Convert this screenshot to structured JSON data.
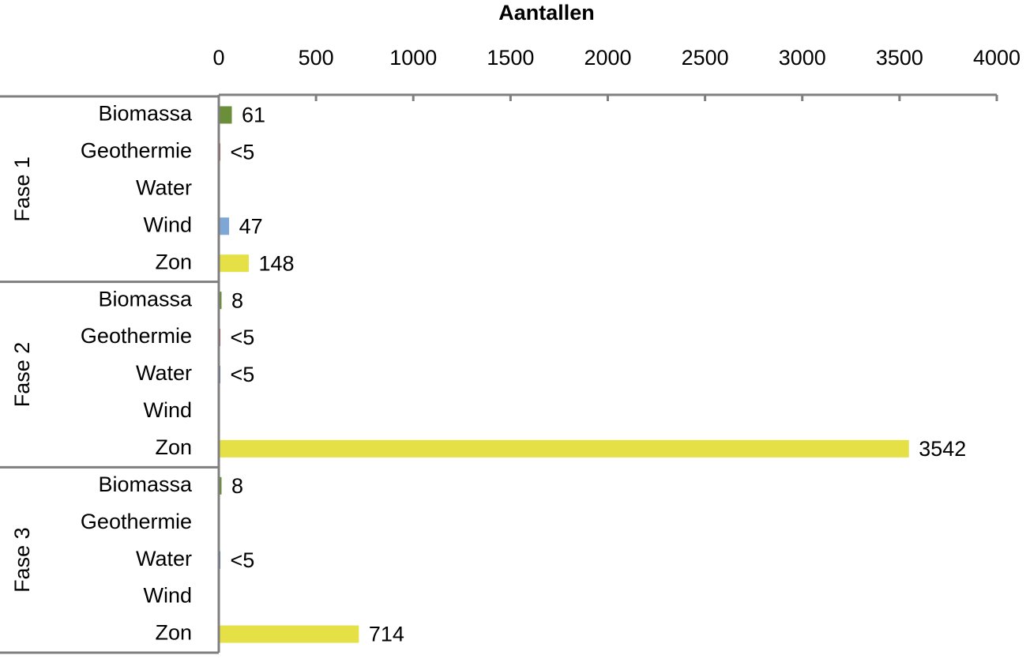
{
  "chart_data": {
    "type": "bar",
    "orientation": "horizontal",
    "title": "Aantallen",
    "xlim": [
      0,
      4000
    ],
    "xticks": [
      0,
      500,
      1000,
      1500,
      2000,
      2500,
      3000,
      3500,
      4000
    ],
    "colors": {
      "Biomassa": "#6b8e3a",
      "Geothermie": "#c0504d",
      "Water": "#4f81bd",
      "Wind": "#7fa7d6",
      "Zon": "#e5e045"
    },
    "groups": [
      {
        "label": "Fase 1",
        "categories": [
          "Biomassa",
          "Geothermie",
          "Water",
          "Wind",
          "Zon"
        ],
        "values": [
          61,
          2,
          null,
          47,
          148
        ],
        "value_labels": [
          "61",
          "<5",
          null,
          "47",
          "148"
        ]
      },
      {
        "label": "Fase 2",
        "categories": [
          "Biomassa",
          "Geothermie",
          "Water",
          "Wind",
          "Zon"
        ],
        "values": [
          8,
          2,
          2,
          null,
          3542
        ],
        "value_labels": [
          "8",
          "<5",
          "<5",
          null,
          "3542"
        ]
      },
      {
        "label": "Fase 3",
        "categories": [
          "Biomassa",
          "Geothermie",
          "Water",
          "Wind",
          "Zon"
        ],
        "values": [
          8,
          null,
          2,
          null,
          714
        ],
        "value_labels": [
          "8",
          null,
          "<5",
          null,
          "714"
        ]
      }
    ]
  }
}
